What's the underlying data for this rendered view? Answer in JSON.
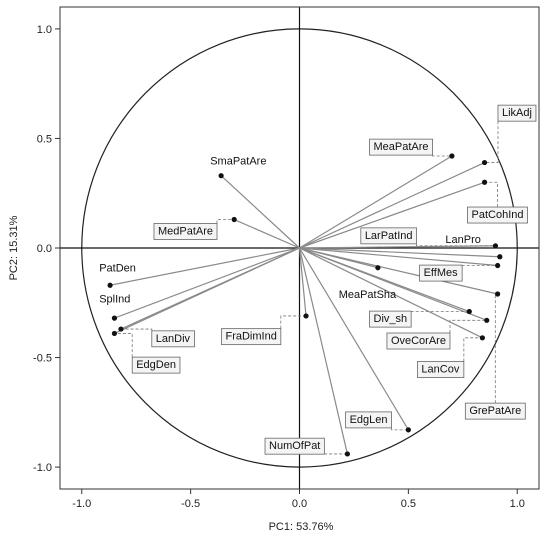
{
  "chart_data": {
    "type": "scatter",
    "subtype": "pca-loading-biplot",
    "xlabel": "PC1: 53.76%",
    "ylabel": "PC2: 15.31%",
    "xlim": [
      -1.1,
      1.1
    ],
    "ylim": [
      -1.1,
      1.1
    ],
    "xticks": [
      "-1.0",
      "-0.5",
      "0.0",
      "0.5",
      "1.0"
    ],
    "yticks": [
      "-1.0",
      "-0.5",
      "0.0",
      "0.5",
      "1.0"
    ],
    "unit_circle": true,
    "colors": {
      "vector": "#8a8a8a",
      "point": "#111111",
      "frame": "#333333",
      "label_box": "#f4f4f4"
    },
    "variables": [
      {
        "name": "LikAdj",
        "x": 0.85,
        "y": 0.39,
        "boxed": true,
        "label_pos": [
          0.93,
          0.62
        ]
      },
      {
        "name": "MeaPatAre",
        "x": 0.7,
        "y": 0.42,
        "boxed": true,
        "label_pos": [
          0.34,
          0.465
        ]
      },
      {
        "name": "PatCohInd",
        "x": 0.85,
        "y": 0.3,
        "boxed": true,
        "label_pos": [
          0.79,
          0.155
        ]
      },
      {
        "name": "LarPatInd",
        "x": 0.9,
        "y": 0.01,
        "boxed": true,
        "label_pos": [
          0.3,
          0.06
        ]
      },
      {
        "name": "LanPro",
        "x": 0.92,
        "y": -0.04,
        "boxed": false,
        "label_pos": [
          0.67,
          0.04
        ]
      },
      {
        "name": "EffMes",
        "x": 0.91,
        "y": -0.08,
        "boxed": true,
        "label_pos": [
          0.57,
          -0.11
        ]
      },
      {
        "name": "MeaPatSha",
        "x": 0.36,
        "y": -0.09,
        "boxed": false,
        "label_pos": [
          0.18,
          -0.21
        ]
      },
      {
        "name": "Div_sh",
        "x": 0.78,
        "y": -0.29,
        "boxed": true,
        "label_pos": [
          0.34,
          -0.32
        ]
      },
      {
        "name": "OveCorAre",
        "x": 0.86,
        "y": -0.33,
        "boxed": true,
        "label_pos": [
          0.42,
          -0.42
        ]
      },
      {
        "name": "LanCov",
        "x": 0.84,
        "y": -0.41,
        "boxed": true,
        "label_pos": [
          0.56,
          -0.55
        ]
      },
      {
        "name": "GrePatAre",
        "x": 0.91,
        "y": -0.21,
        "boxed": true,
        "label_pos": [
          0.78,
          -0.74
        ]
      },
      {
        "name": "EdgLen",
        "x": 0.5,
        "y": -0.83,
        "boxed": true,
        "label_pos": [
          0.23,
          -0.78
        ]
      },
      {
        "name": "NumOfPat",
        "x": 0.22,
        "y": -0.94,
        "boxed": true,
        "label_pos": [
          -0.14,
          -0.9
        ]
      },
      {
        "name": "FraDimInd",
        "x": 0.03,
        "y": -0.31,
        "boxed": true,
        "label_pos": [
          -0.34,
          -0.4
        ]
      },
      {
        "name": "SmaPatAre",
        "x": -0.36,
        "y": 0.33,
        "boxed": false,
        "label_pos": [
          -0.41,
          0.4
        ]
      },
      {
        "name": "MedPatAre",
        "x": -0.3,
        "y": 0.13,
        "boxed": true,
        "label_pos": [
          -0.65,
          0.08
        ]
      },
      {
        "name": "PatDen",
        "x": -0.87,
        "y": -0.17,
        "boxed": false,
        "label_pos": [
          -0.92,
          -0.09
        ]
      },
      {
        "name": "SplInd",
        "x": -0.85,
        "y": -0.32,
        "boxed": false,
        "label_pos": [
          -0.92,
          -0.23
        ]
      },
      {
        "name": "LanDiv",
        "x": -0.82,
        "y": -0.37,
        "boxed": true,
        "label_pos": [
          -0.66,
          -0.41
        ]
      },
      {
        "name": "EdgDen",
        "x": -0.85,
        "y": -0.39,
        "boxed": true,
        "label_pos": [
          -0.75,
          -0.53
        ]
      }
    ]
  }
}
